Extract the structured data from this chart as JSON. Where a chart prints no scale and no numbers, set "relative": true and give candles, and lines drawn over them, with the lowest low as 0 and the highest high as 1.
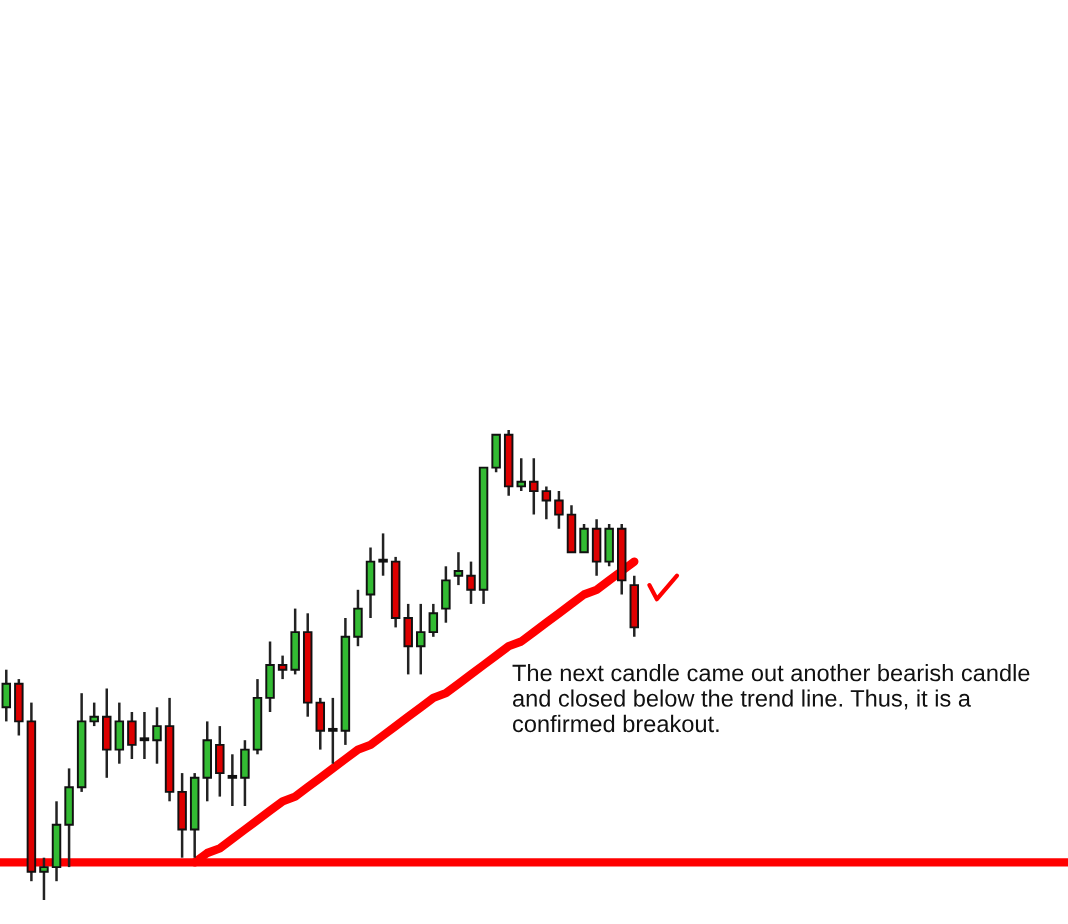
{
  "chart_data": {
    "type": "candlestick",
    "relative": true,
    "categories": [
      null,
      null,
      null,
      null,
      null,
      null,
      null,
      null,
      null,
      null,
      null,
      null,
      null,
      null,
      null,
      null,
      null,
      null,
      null,
      null,
      null,
      null,
      null,
      null,
      null,
      null,
      null,
      null,
      null,
      null,
      null,
      null,
      null,
      null,
      null,
      null,
      null,
      null,
      null,
      null,
      null,
      null,
      null,
      null,
      null,
      null,
      null,
      null,
      null,
      null,
      null
    ],
    "ohlc": [
      [
        0.41,
        0.49,
        0.38,
        0.46
      ],
      [
        0.46,
        0.47,
        0.35,
        0.38
      ],
      [
        0.38,
        0.42,
        0.04,
        0.06
      ],
      [
        0.06,
        0.09,
        0,
        0.07
      ],
      [
        0.07,
        0.21,
        0.04,
        0.16
      ],
      [
        0.16,
        0.28,
        0.07,
        0.24
      ],
      [
        0.24,
        0.44,
        0.23,
        0.38
      ],
      [
        0.38,
        0.42,
        0.37,
        0.39
      ],
      [
        0.39,
        0.45,
        0.26,
        0.32
      ],
      [
        0.32,
        0.42,
        0.29,
        0.38
      ],
      [
        0.38,
        0.4,
        0.3,
        0.33
      ],
      [
        0.34,
        0.4,
        0.3,
        0.34
      ],
      [
        0.34,
        0.41,
        0.29,
        0.37
      ],
      [
        0.37,
        0.43,
        0.21,
        0.23
      ],
      [
        0.23,
        0.27,
        0.09,
        0.15
      ],
      [
        0.15,
        0.27,
        0.09,
        0.26
      ],
      [
        0.26,
        0.38,
        0.21,
        0.34
      ],
      [
        0.33,
        0.37,
        0.22,
        0.27
      ],
      [
        0.26,
        0.31,
        0.2,
        0.26
      ],
      [
        0.26,
        0.34,
        0.2,
        0.32
      ],
      [
        0.32,
        0.47,
        0.31,
        0.43
      ],
      [
        0.43,
        0.55,
        0.4,
        0.5
      ],
      [
        0.5,
        0.52,
        0.47,
        0.49
      ],
      [
        0.49,
        0.62,
        0.48,
        0.57
      ],
      [
        0.57,
        0.61,
        0.39,
        0.42
      ],
      [
        0.42,
        0.43,
        0.32,
        0.36
      ],
      [
        0.36,
        0.43,
        0.29,
        0.36
      ],
      [
        0.36,
        0.6,
        0.33,
        0.56
      ],
      [
        0.56,
        0.66,
        0.54,
        0.62
      ],
      [
        0.65,
        0.75,
        0.6,
        0.72
      ],
      [
        0.72,
        0.78,
        0.69,
        0.72
      ],
      [
        0.72,
        0.73,
        0.58,
        0.6
      ],
      [
        0.6,
        0.63,
        0.48,
        0.54
      ],
      [
        0.54,
        0.63,
        0.48,
        0.57
      ],
      [
        0.57,
        0.63,
        0.56,
        0.61
      ],
      [
        0.62,
        0.71,
        0.59,
        0.68
      ],
      [
        0.69,
        0.74,
        0.67,
        0.7
      ],
      [
        0.69,
        0.72,
        0.63,
        0.66
      ],
      [
        0.66,
        0.92,
        0.63,
        0.92
      ],
      [
        0.92,
        0.99,
        0.91,
        0.99
      ],
      [
        0.99,
        1,
        0.86,
        0.88
      ],
      [
        0.88,
        0.94,
        0.87,
        0.89
      ],
      [
        0.89,
        0.94,
        0.82,
        0.87
      ],
      [
        0.87,
        0.88,
        0.81,
        0.85
      ],
      [
        0.85,
        0.87,
        0.79,
        0.82
      ],
      [
        0.82,
        0.84,
        0.74,
        0.74
      ],
      [
        0.74,
        0.8,
        0.74,
        0.79
      ],
      [
        0.79,
        0.81,
        0.69,
        0.72
      ],
      [
        0.72,
        0.8,
        0.71,
        0.79
      ],
      [
        0.79,
        0.8,
        0.65,
        0.68
      ],
      [
        0.67,
        0.69,
        0.56,
        0.58
      ]
    ],
    "colors": [
      "#33bb33",
      "#dd0000",
      "#dd0000",
      "#33bb33",
      "#33bb33",
      "#33bb33",
      "#33bb33",
      "#33bb33",
      "#dd0000",
      "#33bb33",
      "#dd0000",
      "#33bb33",
      "#33bb33",
      "#dd0000",
      "#dd0000",
      "#33bb33",
      "#33bb33",
      "#dd0000",
      "#33bb33",
      "#33bb33",
      "#33bb33",
      "#33bb33",
      "#dd0000",
      "#33bb33",
      "#dd0000",
      "#dd0000",
      "#33bb33",
      "#33bb33",
      "#33bb33",
      "#33bb33",
      "#33bb33",
      "#dd0000",
      "#dd0000",
      "#33bb33",
      "#33bb33",
      "#33bb33",
      "#33bb33",
      "#dd0000",
      "#33bb33",
      "#33bb33",
      "#dd0000",
      "#33bb33",
      "#dd0000",
      "#dd0000",
      "#dd0000",
      "#dd0000",
      "#33bb33",
      "#dd0000",
      "#33bb33",
      "#dd0000",
      "#dd0000"
    ],
    "series": [
      {
        "type": "line",
        "values": [
          null,
          null,
          null,
          null,
          null,
          null,
          null,
          null,
          null,
          null,
          null,
          null,
          null,
          null,
          null,
          0.08,
          0.1,
          0.11,
          0.13,
          0.15,
          0.17,
          0.19,
          0.21,
          0.22,
          0.24,
          0.26,
          0.28,
          0.3,
          0.32,
          0.33,
          0.35,
          0.37,
          0.39,
          0.41,
          0.43,
          0.44,
          0.46,
          0.48,
          0.5,
          0.52,
          0.54,
          0.55,
          0.57,
          0.59,
          0.61,
          0.63,
          0.65,
          0.66,
          0.68,
          0.7,
          0.72
        ],
        "color": "#ff0000"
      }
    ],
    "ref_lines": [
      {
        "axis": "y",
        "value": 0.08,
        "color": "#ff0000"
      }
    ],
    "annotations": [
      "The next candle came out another bearish candle and closed below the trend line. Thus, it is a confirmed breakout."
    ]
  }
}
